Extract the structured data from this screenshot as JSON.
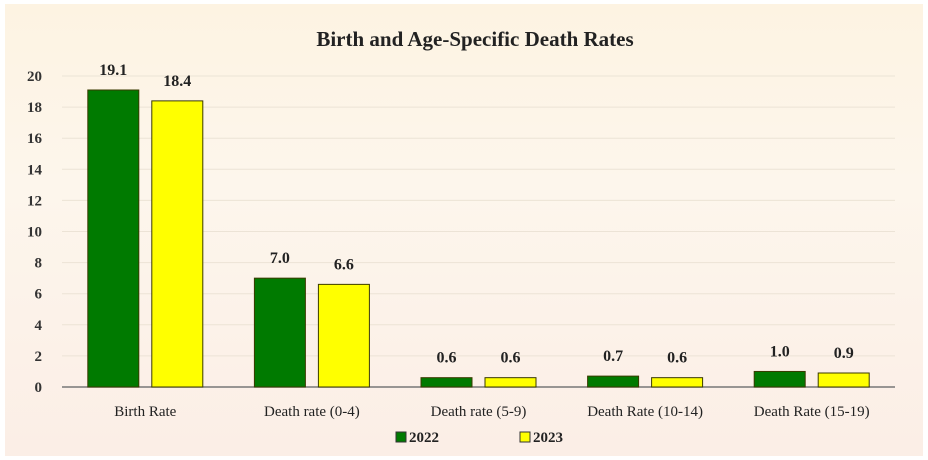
{
  "chart_data": {
    "type": "bar",
    "title": "Birth and Age-Specific Death Rates",
    "xlabel": "",
    "ylabel": "",
    "ylim": [
      0,
      20
    ],
    "yticks": [
      "0",
      "2",
      "4",
      "6",
      "8",
      "10",
      "12",
      "14",
      "16",
      "18",
      "20"
    ],
    "grid": true,
    "legend_position": "bottom",
    "categories": [
      "Birth Rate",
      "Death rate (0-4)",
      "Death rate (5-9)",
      "Death Rate (10-14)",
      "Death Rate (15-19)"
    ],
    "series": [
      {
        "name": "2022",
        "color": "#007a00",
        "values": [
          19.1,
          7.0,
          0.6,
          0.7,
          1.0
        ],
        "labels": [
          "19.1",
          "7.0",
          "0.6",
          "0.7",
          "1.0"
        ]
      },
      {
        "name": "2023",
        "color": "#ffff00",
        "values": [
          18.4,
          6.6,
          0.6,
          0.6,
          0.9
        ],
        "labels": [
          "18.4",
          "6.6",
          "0.6",
          "0.6",
          "0.9"
        ]
      }
    ]
  }
}
